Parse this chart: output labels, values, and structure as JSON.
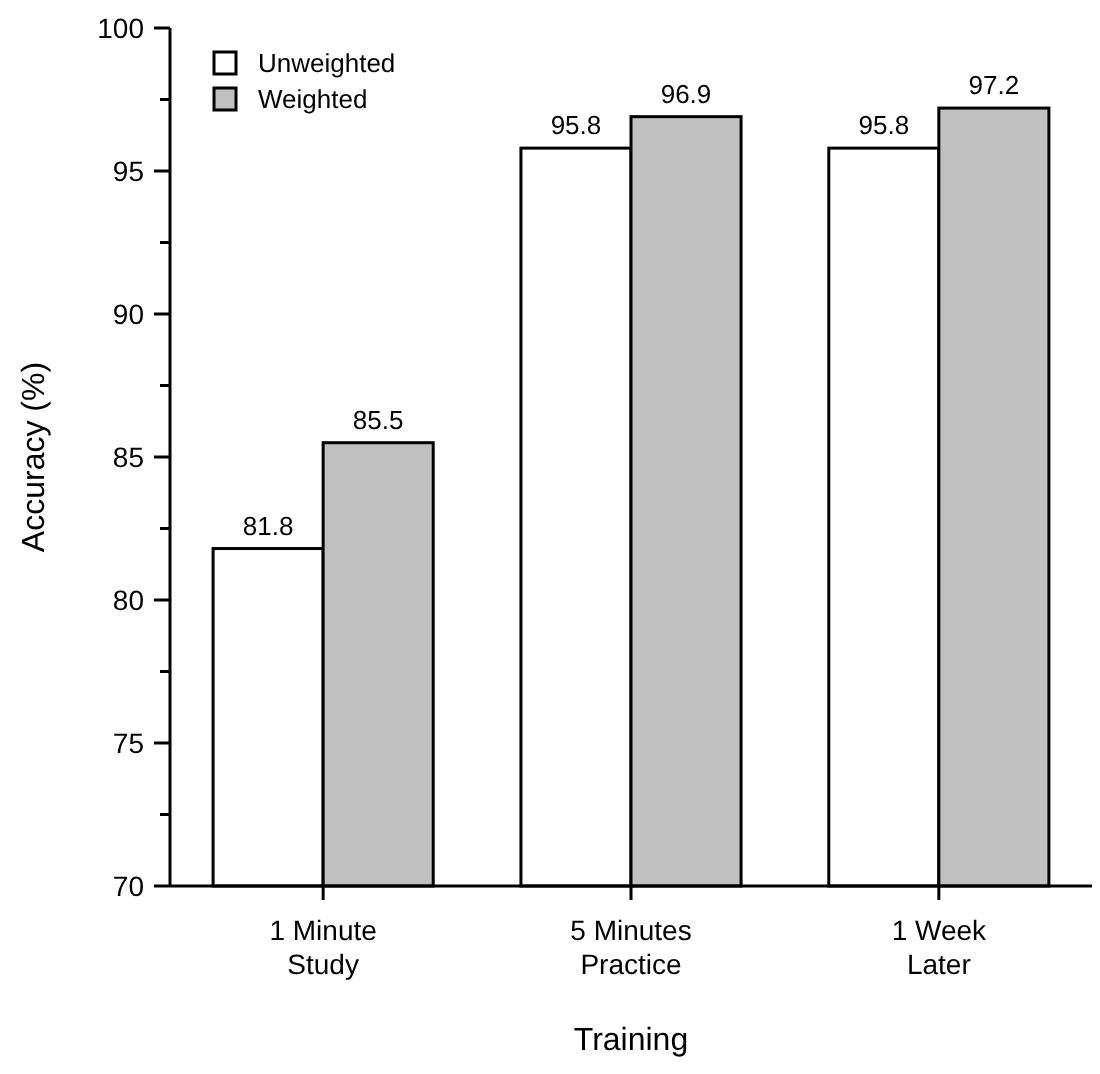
{
  "chart_data": {
    "type": "bar",
    "xlabel": "Training",
    "ylabel": "Accuracy (%)",
    "categories": [
      "1  Minute\nStudy",
      "5  Minutes\nPractice",
      "1 Week\nLater"
    ],
    "series": [
      {
        "name": "Unweighted",
        "color": "#ffffff",
        "values": [
          81.8,
          95.8,
          95.8
        ]
      },
      {
        "name": "Weighted",
        "color": "#c0c0c0",
        "values": [
          85.5,
          96.9,
          97.2
        ]
      }
    ],
    "ylim": [
      70,
      100
    ],
    "yticks": [
      70,
      {
        "value": 72.5,
        "label": null
      },
      75,
      {
        "value": 77.5,
        "label": null
      },
      80,
      {
        "value": 82.5,
        "label": null
      },
      85,
      {
        "value": 87.5,
        "label": null
      },
      90,
      {
        "value": 92.5,
        "label": null
      },
      95,
      {
        "value": 97.5,
        "label": null
      },
      100
    ],
    "data_labels": true,
    "legend": "top left",
    "grid": false
  }
}
